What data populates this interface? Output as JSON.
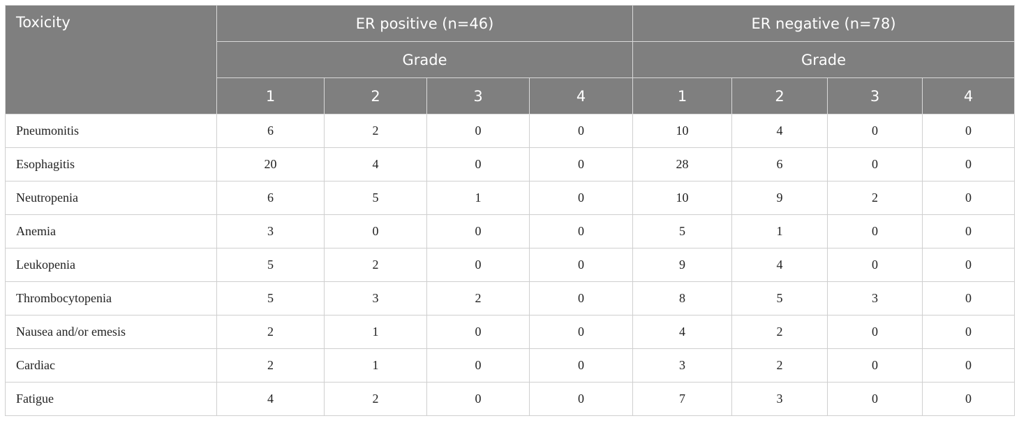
{
  "table": {
    "header": {
      "toxicity": "Toxicity",
      "groups": [
        "ER positive (n=46)",
        "ER negative (n=78)"
      ],
      "grade_label": "Grade",
      "grades": [
        "1",
        "2",
        "3",
        "4"
      ]
    },
    "rows": [
      {
        "label": "Pneumonitis",
        "values": [
          "6",
          "2",
          "0",
          "0",
          "10",
          "4",
          "0",
          "0"
        ]
      },
      {
        "label": "Esophagitis",
        "values": [
          "20",
          "4",
          "0",
          "0",
          "28",
          "6",
          "0",
          "0"
        ]
      },
      {
        "label": "Neutropenia",
        "values": [
          "6",
          "5",
          "1",
          "0",
          "10",
          "9",
          "2",
          "0"
        ]
      },
      {
        "label": "Anemia",
        "values": [
          "3",
          "0",
          "0",
          "0",
          "5",
          "1",
          "0",
          "0"
        ]
      },
      {
        "label": "Leukopenia",
        "values": [
          "5",
          "2",
          "0",
          "0",
          "9",
          "4",
          "0",
          "0"
        ]
      },
      {
        "label": "Thrombocytopenia",
        "values": [
          "5",
          "3",
          "2",
          "0",
          "8",
          "5",
          "3",
          "0"
        ]
      },
      {
        "label": "Nausea and/or emesis",
        "values": [
          "2",
          "1",
          "0",
          "0",
          "4",
          "2",
          "0",
          "0"
        ]
      },
      {
        "label": "Cardiac",
        "values": [
          "2",
          "1",
          "0",
          "0",
          "3",
          "2",
          "0",
          "0"
        ]
      },
      {
        "label": "Fatigue",
        "values": [
          "4",
          "2",
          "0",
          "0",
          "7",
          "3",
          "0",
          "0"
        ]
      }
    ]
  }
}
